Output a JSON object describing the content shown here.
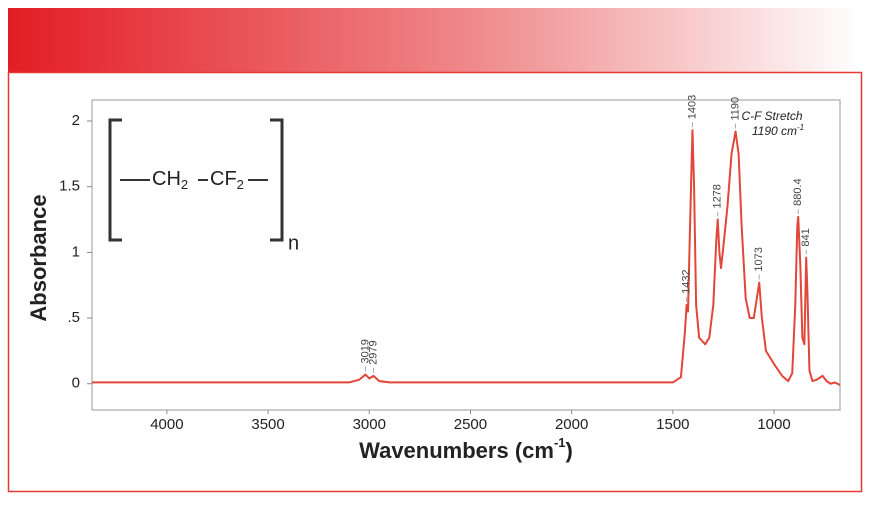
{
  "chart_data": {
    "type": "line",
    "x_label": [
      "Wavenumbers (cm",
      "-1",
      ")"
    ],
    "y_label": "Absorbance",
    "x": [
      4370,
      3500,
      3100,
      3050,
      3019,
      3000,
      2979,
      2950,
      2900,
      2000,
      1750,
      1500,
      1460,
      1440,
      1432,
      1425,
      1415,
      1403,
      1395,
      1385,
      1370,
      1340,
      1320,
      1300,
      1285,
      1278,
      1270,
      1262,
      1250,
      1230,
      1210,
      1190,
      1175,
      1160,
      1140,
      1120,
      1100,
      1085,
      1073,
      1060,
      1040,
      1000,
      960,
      930,
      910,
      895,
      885,
      880.4,
      870,
      860,
      850,
      841,
      835,
      825,
      810,
      790,
      760,
      740,
      720,
      700,
      674
    ],
    "series": [
      {
        "color": "#e2463a",
        "values": [
          0.01,
          0.01,
          0.01,
          0.03,
          0.07,
          0.04,
          0.06,
          0.02,
          0.01,
          0.01,
          0.01,
          0.01,
          0.05,
          0.4,
          0.6,
          0.55,
          1.2,
          1.93,
          1.5,
          0.6,
          0.35,
          0.3,
          0.35,
          0.6,
          1.1,
          1.25,
          1.0,
          0.88,
          1.05,
          1.35,
          1.75,
          1.92,
          1.75,
          1.2,
          0.65,
          0.5,
          0.5,
          0.65,
          0.77,
          0.5,
          0.25,
          0.15,
          0.06,
          0.02,
          0.08,
          0.6,
          1.2,
          1.27,
          0.9,
          0.35,
          0.3,
          0.96,
          0.7,
          0.1,
          0.02,
          0.03,
          0.06,
          0.02,
          0.0,
          0.01,
          -0.01
        ]
      }
    ],
    "peaks": [
      3019,
      2979,
      1432,
      1403,
      1278,
      1190,
      1073,
      880.4,
      841
    ],
    "annotation": [
      "C-F Stretch",
      "1190 cm",
      "-1"
    ],
    "structure": {
      "groups": [
        "CH",
        "2",
        "CF",
        "2"
      ],
      "repeat": "n"
    },
    "xlim": [
      4370,
      674
    ],
    "xticks": [
      4000,
      3500,
      3000,
      2500,
      2000,
      1500,
      1000
    ],
    "ylim": [
      -0.2,
      2.16
    ],
    "yticks": [
      0,
      {
        "value": 0.5,
        "label": ".5"
      },
      1,
      1.5,
      2
    ],
    "grid": false
  }
}
